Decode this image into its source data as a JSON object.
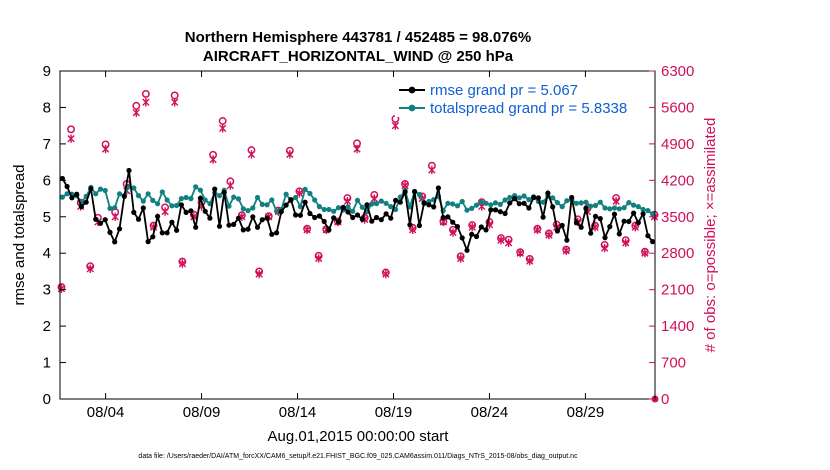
{
  "chart_data": {
    "type": "line",
    "title_line1": "Northern Hemisphere 443781 / 452485 = 98.076%",
    "title_line2": "AIRCRAFT_HORIZONTAL_WIND @ 250 hPa",
    "xlabel": "Aug.01,2015 00:00:00 start",
    "ylabel_left": "rmse and totalspread",
    "ylabel_right": "# of obs: o=possible; ×=assimilated",
    "footnote": "data file: /Users/raeder/DAI/ATM_forcXX/CAM6_setup/f.e21.FHIST_BGC.f09_025.CAM6assim.011/Diags_NTrS_2015-08/obs_diag_output.nc",
    "x_start_day": 0.625,
    "x_end_day": 31.625,
    "x_ticks": [
      {
        "day": 3,
        "label": "08/04"
      },
      {
        "day": 8,
        "label": "08/09"
      },
      {
        "day": 13,
        "label": "08/14"
      },
      {
        "day": 18,
        "label": "08/19"
      },
      {
        "day": 23,
        "label": "08/24"
      },
      {
        "day": 28,
        "label": "08/29"
      }
    ],
    "ylim_left": [
      0,
      9
    ],
    "yticks_left": [
      "0",
      "1",
      "2",
      "3",
      "4",
      "5",
      "6",
      "7",
      "8",
      "9"
    ],
    "ylim_right": [
      0,
      6300
    ],
    "yticks_right": [
      "0",
      "700",
      "1400",
      "2100",
      "2800",
      "3500",
      "4200",
      "4900",
      "5600",
      "6300"
    ],
    "colors": {
      "rmse": "#000000",
      "spread": "#108080",
      "obs": "#d0105a",
      "legend_text": "#1060d0"
    },
    "series": [
      {
        "name": "rmse grand pr = 5.067",
        "values": [
          6.05,
          5.83,
          5.52,
          5.62,
          5.28,
          5.4,
          5.77,
          4.93,
          4.82,
          4.92,
          4.57,
          4.31,
          4.67,
          5.56,
          6.27,
          5.12,
          4.93,
          5.24,
          4.32,
          4.45,
          5.01,
          4.56,
          4.56,
          4.85,
          4.63,
          5.33,
          5.12,
          5.16,
          4.71,
          5.51,
          5.15,
          4.96,
          5.76,
          4.74,
          5.67,
          4.77,
          4.79,
          4.96,
          4.64,
          4.66,
          5.0,
          4.71,
          4.92,
          4.96,
          4.52,
          4.56,
          5.14,
          5.32,
          5.47,
          5.05,
          5.04,
          5.4,
          5.09,
          4.98,
          5.02,
          4.87,
          4.64,
          4.97,
          4.86,
          5.26,
          5.13,
          4.98,
          5.05,
          4.93,
          5.33,
          4.88,
          4.98,
          4.92,
          5.08,
          4.96,
          5.45,
          5.4,
          5.68,
          4.78,
          5.69,
          4.76,
          5.38,
          5.33,
          5.27,
          5.79,
          4.98,
          5.0,
          4.85,
          4.73,
          4.42,
          4.08,
          4.52,
          4.46,
          4.72,
          4.64,
          5.19,
          5.19,
          5.14,
          5.09,
          5.38,
          5.5,
          5.36,
          5.37,
          5.24,
          5.53,
          5.52,
          4.99,
          5.65,
          5.27,
          4.61,
          4.76,
          4.36,
          5.53,
          4.84,
          4.71,
          5.23,
          4.55,
          5.01,
          4.95,
          4.43,
          4.73,
          5.07,
          4.53,
          4.88,
          4.87,
          5.1,
          4.84,
          5.08,
          4.48,
          4.32
        ]
      },
      {
        "name": "totalspread grand pr = 5.8338",
        "values": [
          5.54,
          5.63,
          5.62,
          5.58,
          5.4,
          5.56,
          5.81,
          5.63,
          5.76,
          5.72,
          5.23,
          5.25,
          5.63,
          5.58,
          5.84,
          5.79,
          5.58,
          5.43,
          5.63,
          5.45,
          5.36,
          5.68,
          5.46,
          5.3,
          5.31,
          5.5,
          5.53,
          5.5,
          5.82,
          5.73,
          5.46,
          5.36,
          5.66,
          5.58,
          5.73,
          5.29,
          5.54,
          5.49,
          5.22,
          5.17,
          5.24,
          5.53,
          5.34,
          5.33,
          5.46,
          5.15,
          5.2,
          5.62,
          5.44,
          5.53,
          5.28,
          5.75,
          5.64,
          5.46,
          5.28,
          5.2,
          5.2,
          5.15,
          5.25,
          5.19,
          5.27,
          5.15,
          5.45,
          5.26,
          5.14,
          5.35,
          5.36,
          5.43,
          5.37,
          5.28,
          5.2,
          5.54,
          5.72,
          5.27,
          5.7,
          5.61,
          5.36,
          5.42,
          5.47,
          5.56,
          5.17,
          5.37,
          5.35,
          5.3,
          5.42,
          5.18,
          5.23,
          5.32,
          5.4,
          5.37,
          5.33,
          5.38,
          5.34,
          5.46,
          5.53,
          5.58,
          5.52,
          5.57,
          5.47,
          5.55,
          5.42,
          5.4,
          5.57,
          5.52,
          5.39,
          5.28,
          5.44,
          5.47,
          5.37,
          5.38,
          5.4,
          5.29,
          5.31,
          5.4,
          5.24,
          5.22,
          5.24,
          5.22,
          5.25,
          5.39,
          5.32,
          5.28,
          5.2,
          5.17,
          5.08
        ]
      }
    ],
    "obs_possible": [
      {
        "day": 0.7,
        "v": 2150
      },
      {
        "day": 1.2,
        "v": 5180
      },
      {
        "day": 1.7,
        "v": 3770
      },
      {
        "day": 2.2,
        "v": 2550
      },
      {
        "day": 2.6,
        "v": 3480
      },
      {
        "day": 3.0,
        "v": 4890
      },
      {
        "day": 3.5,
        "v": 3590
      },
      {
        "day": 4.1,
        "v": 4130
      },
      {
        "day": 4.6,
        "v": 5630
      },
      {
        "day": 5.1,
        "v": 5860
      },
      {
        "day": 5.5,
        "v": 3330
      },
      {
        "day": 6.1,
        "v": 3680
      },
      {
        "day": 6.6,
        "v": 5830
      },
      {
        "day": 7.0,
        "v": 2640
      },
      {
        "day": 7.6,
        "v": 3540
      },
      {
        "day": 8.0,
        "v": 3780
      },
      {
        "day": 8.6,
        "v": 4690
      },
      {
        "day": 9.1,
        "v": 5340
      },
      {
        "day": 9.5,
        "v": 4180
      },
      {
        "day": 10.1,
        "v": 3530
      },
      {
        "day": 10.6,
        "v": 4780
      },
      {
        "day": 11.0,
        "v": 2450
      },
      {
        "day": 11.5,
        "v": 3510
      },
      {
        "day": 12.0,
        "v": 3620
      },
      {
        "day": 12.6,
        "v": 4770
      },
      {
        "day": 13.1,
        "v": 3990
      },
      {
        "day": 13.5,
        "v": 3270
      },
      {
        "day": 14.1,
        "v": 2750
      },
      {
        "day": 14.5,
        "v": 3260
      },
      {
        "day": 15.1,
        "v": 3410
      },
      {
        "day": 15.6,
        "v": 3860
      },
      {
        "day": 16.1,
        "v": 4910
      },
      {
        "day": 16.5,
        "v": 3480
      },
      {
        "day": 17.0,
        "v": 3920
      },
      {
        "day": 17.6,
        "v": 2430
      },
      {
        "day": 18.1,
        "v": 5380
      },
      {
        "day": 18.6,
        "v": 4130
      },
      {
        "day": 19.0,
        "v": 3290
      },
      {
        "day": 19.5,
        "v": 3890
      },
      {
        "day": 20.0,
        "v": 4480
      },
      {
        "day": 20.6,
        "v": 3410
      },
      {
        "day": 21.1,
        "v": 3250
      },
      {
        "day": 21.5,
        "v": 2740
      },
      {
        "day": 22.1,
        "v": 3340
      },
      {
        "day": 22.6,
        "v": 3780
      },
      {
        "day": 23.0,
        "v": 3400
      },
      {
        "day": 23.6,
        "v": 3090
      },
      {
        "day": 24.0,
        "v": 3060
      },
      {
        "day": 24.6,
        "v": 2820
      },
      {
        "day": 25.1,
        "v": 2690
      },
      {
        "day": 25.5,
        "v": 3270
      },
      {
        "day": 26.1,
        "v": 3180
      },
      {
        "day": 26.5,
        "v": 3350
      },
      {
        "day": 27.0,
        "v": 2870
      },
      {
        "day": 27.6,
        "v": 3450
      },
      {
        "day": 28.1,
        "v": 3660
      },
      {
        "day": 28.5,
        "v": 3330
      },
      {
        "day": 29.0,
        "v": 2960
      },
      {
        "day": 29.6,
        "v": 3860
      },
      {
        "day": 30.1,
        "v": 3050
      },
      {
        "day": 30.6,
        "v": 3330
      },
      {
        "day": 31.1,
        "v": 2830
      },
      {
        "day": 31.6,
        "v": 3540
      }
    ],
    "obs_assimilated": [
      {
        "day": 0.7,
        "v": 2120
      },
      {
        "day": 1.2,
        "v": 5000
      },
      {
        "day": 1.7,
        "v": 3700
      },
      {
        "day": 2.2,
        "v": 2500
      },
      {
        "day": 2.6,
        "v": 3400
      },
      {
        "day": 3.0,
        "v": 4800
      },
      {
        "day": 3.5,
        "v": 3500
      },
      {
        "day": 4.1,
        "v": 4000
      },
      {
        "day": 4.6,
        "v": 5500
      },
      {
        "day": 5.1,
        "v": 5700
      },
      {
        "day": 5.5,
        "v": 3300
      },
      {
        "day": 6.1,
        "v": 3600
      },
      {
        "day": 6.6,
        "v": 5700
      },
      {
        "day": 7.0,
        "v": 2600
      },
      {
        "day": 7.6,
        "v": 3500
      },
      {
        "day": 8.0,
        "v": 3700
      },
      {
        "day": 8.6,
        "v": 4600
      },
      {
        "day": 9.1,
        "v": 5200
      },
      {
        "day": 9.5,
        "v": 4100
      },
      {
        "day": 10.1,
        "v": 3500
      },
      {
        "day": 10.6,
        "v": 4700
      },
      {
        "day": 11.0,
        "v": 2400
      },
      {
        "day": 11.5,
        "v": 3500
      },
      {
        "day": 12.0,
        "v": 3600
      },
      {
        "day": 12.6,
        "v": 4700
      },
      {
        "day": 13.1,
        "v": 3950
      },
      {
        "day": 13.5,
        "v": 3250
      },
      {
        "day": 14.1,
        "v": 2700
      },
      {
        "day": 14.5,
        "v": 3250
      },
      {
        "day": 15.1,
        "v": 3400
      },
      {
        "day": 15.6,
        "v": 3800
      },
      {
        "day": 16.1,
        "v": 4800
      },
      {
        "day": 16.5,
        "v": 3450
      },
      {
        "day": 17.0,
        "v": 3850
      },
      {
        "day": 17.6,
        "v": 2400
      },
      {
        "day": 18.1,
        "v": 5250
      },
      {
        "day": 18.6,
        "v": 4100
      },
      {
        "day": 19.0,
        "v": 3250
      },
      {
        "day": 19.5,
        "v": 3850
      },
      {
        "day": 20.0,
        "v": 4400
      },
      {
        "day": 20.6,
        "v": 3400
      },
      {
        "day": 21.1,
        "v": 3200
      },
      {
        "day": 21.5,
        "v": 2700
      },
      {
        "day": 22.1,
        "v": 3300
      },
      {
        "day": 22.6,
        "v": 3700
      },
      {
        "day": 23.0,
        "v": 3350
      },
      {
        "day": 23.6,
        "v": 3050
      },
      {
        "day": 24.0,
        "v": 3000
      },
      {
        "day": 24.6,
        "v": 2800
      },
      {
        "day": 25.1,
        "v": 2650
      },
      {
        "day": 25.5,
        "v": 3250
      },
      {
        "day": 26.1,
        "v": 3150
      },
      {
        "day": 26.5,
        "v": 3300
      },
      {
        "day": 27.0,
        "v": 2850
      },
      {
        "day": 27.6,
        "v": 3400
      },
      {
        "day": 28.1,
        "v": 3600
      },
      {
        "day": 28.5,
        "v": 3300
      },
      {
        "day": 29.0,
        "v": 2900
      },
      {
        "day": 29.6,
        "v": 3800
      },
      {
        "day": 30.1,
        "v": 3000
      },
      {
        "day": 30.6,
        "v": 3300
      },
      {
        "day": 31.1,
        "v": 2800
      },
      {
        "day": 31.6,
        "v": 3500
      }
    ],
    "obs_end_point": {
      "day": 31.625,
      "v": 0
    }
  }
}
